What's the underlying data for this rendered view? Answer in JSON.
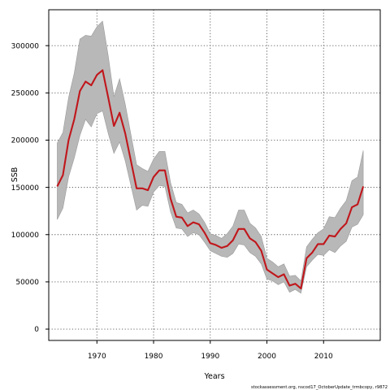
{
  "chart_data": {
    "type": "line",
    "title": "",
    "xlabel": "Years",
    "ylabel": "SSB",
    "xlim": [
      1961.5,
      2020
    ],
    "ylim": [
      -12000,
      338000
    ],
    "x_ticks": [
      1970,
      1980,
      1990,
      2000,
      2010
    ],
    "y_ticks": [
      0,
      50000,
      100000,
      150000,
      200000,
      250000,
      300000
    ],
    "grid": true,
    "legend": "none",
    "colors": {
      "line": "#c0161b",
      "band": "#b8b8b8",
      "band_edge": "#9a9a9a",
      "grid": "#555555"
    },
    "series": [
      {
        "x": [
          1963,
          1964,
          1965,
          1966,
          1967,
          1968,
          1969,
          1970,
          1971,
          1972,
          1973,
          1974,
          1975,
          1976,
          1977,
          1978,
          1979,
          1980,
          1981,
          1982,
          1983,
          1984,
          1985,
          1986,
          1987,
          1988,
          1989,
          1990,
          1991,
          1992,
          1993,
          1994,
          1995,
          1996,
          1997,
          1998,
          1999,
          2000,
          2001,
          2002,
          2003,
          2004,
          2005,
          2006,
          2007,
          2008,
          2009,
          2010,
          2011,
          2012,
          2013,
          2014,
          2015,
          2016,
          2017
        ],
        "values": [
          151000,
          163000,
          200000,
          222000,
          252000,
          262000,
          258000,
          269000,
          274000,
          245000,
          215000,
          229000,
          207000,
          178000,
          149000,
          149000,
          147000,
          161000,
          168000,
          168000,
          138000,
          119000,
          118000,
          109000,
          113000,
          111000,
          102000,
          91000,
          89000,
          86000,
          88000,
          94000,
          106000,
          106000,
          96000,
          92000,
          83000,
          63000,
          59000,
          55000,
          58000,
          46000,
          48000,
          43000,
          75000,
          81000,
          90000,
          90000,
          99000,
          98000,
          106000,
          112000,
          129000,
          132000,
          151000
        ],
        "upper": [
          197000,
          208000,
          245000,
          271000,
          307000,
          311000,
          310000,
          320000,
          326000,
          289000,
          246000,
          265000,
          238000,
          206000,
          174000,
          170000,
          167000,
          180000,
          188000,
          188000,
          155000,
          134000,
          132000,
          123000,
          126000,
          122000,
          113000,
          101000,
          99000,
          96000,
          101000,
          109000,
          126000,
          126000,
          112000,
          107000,
          98000,
          75000,
          71000,
          66000,
          69000,
          56000,
          57000,
          51000,
          87000,
          95000,
          102000,
          106000,
          119000,
          118000,
          128000,
          136000,
          157000,
          161000,
          189000
        ],
        "lower": [
          116000,
          128000,
          161000,
          181000,
          205000,
          222000,
          214000,
          228000,
          231000,
          207000,
          186000,
          198000,
          178000,
          152000,
          126000,
          131000,
          130000,
          145000,
          152000,
          151000,
          124000,
          107000,
          106000,
          98000,
          102000,
          100000,
          92000,
          83000,
          80000,
          77000,
          76000,
          80000,
          90000,
          89000,
          81000,
          77000,
          69000,
          53000,
          51000,
          47000,
          50000,
          39000,
          42000,
          38000,
          66000,
          73000,
          79000,
          78000,
          84000,
          81000,
          88000,
          93000,
          108000,
          111000,
          121000
        ]
      }
    ]
  },
  "footer": "stockassessment.org, nscod17_OctoberUpdate_trmbcopy, r9872"
}
